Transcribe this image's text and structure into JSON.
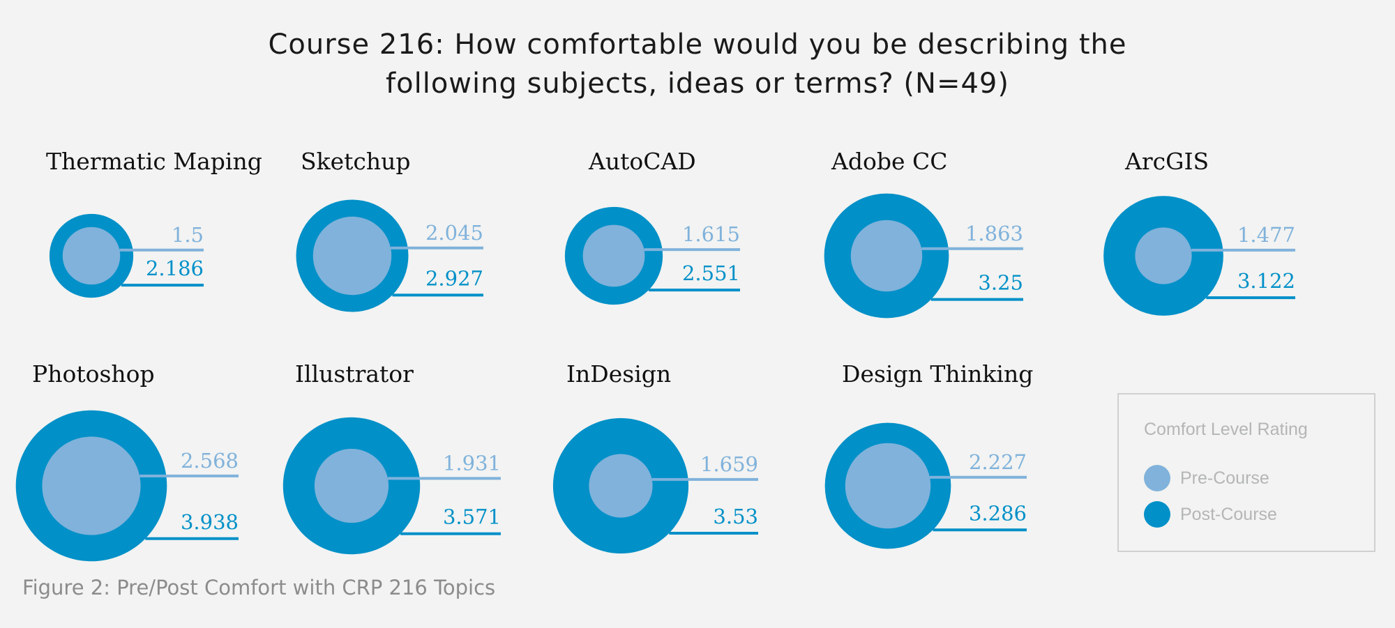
{
  "title_lines": [
    "Course 216: How comfortable would you be describing the",
    "following subjects, ideas or terms? (N=49)"
  ],
  "caption": "Figure 2: Pre/Post Comfort with CRP 216 Topics",
  "legend": {
    "title": "Comfort Level Rating",
    "pre_label": "Pre-Course",
    "post_label": "Post-Course"
  },
  "colors": {
    "pre": "#80b2db",
    "post": "#0290c8",
    "background": "#f2f3f2"
  },
  "chart_data": {
    "type": "nested-circle",
    "series": [
      {
        "name": "Pre-Course"
      },
      {
        "name": "Post-Course"
      }
    ],
    "topics": [
      {
        "label": "Thermatic Maping",
        "pre": 1.5,
        "post": 2.186,
        "pre_text": "1.5",
        "post_text": "2.186"
      },
      {
        "label": "Sketchup",
        "pre": 2.045,
        "post": 2.927,
        "pre_text": "2.045",
        "post_text": "2.927"
      },
      {
        "label": "AutoCAD",
        "pre": 1.615,
        "post": 2.551,
        "pre_text": "1.615",
        "post_text": "2.551"
      },
      {
        "label": "Adobe CC",
        "pre": 1.863,
        "post": 3.25,
        "pre_text": "1.863",
        "post_text": "3.25"
      },
      {
        "label": "ArcGIS",
        "pre": 1.477,
        "post": 3.122,
        "pre_text": "1.477",
        "post_text": "3.122"
      },
      {
        "label": "Photoshop",
        "pre": 2.568,
        "post": 3.938,
        "pre_text": "2.568",
        "post_text": "3.938"
      },
      {
        "label": "Illustrator",
        "pre": 1.931,
        "post": 3.571,
        "pre_text": "1.931",
        "post_text": "3.571"
      },
      {
        "label": "InDesign",
        "pre": 1.659,
        "post": 3.53,
        "pre_text": "1.659",
        "post_text": "3.53"
      },
      {
        "label": "Design Thinking",
        "pre": 2.227,
        "post": 3.286,
        "pre_text": "2.227",
        "post_text": "3.286"
      }
    ]
  }
}
